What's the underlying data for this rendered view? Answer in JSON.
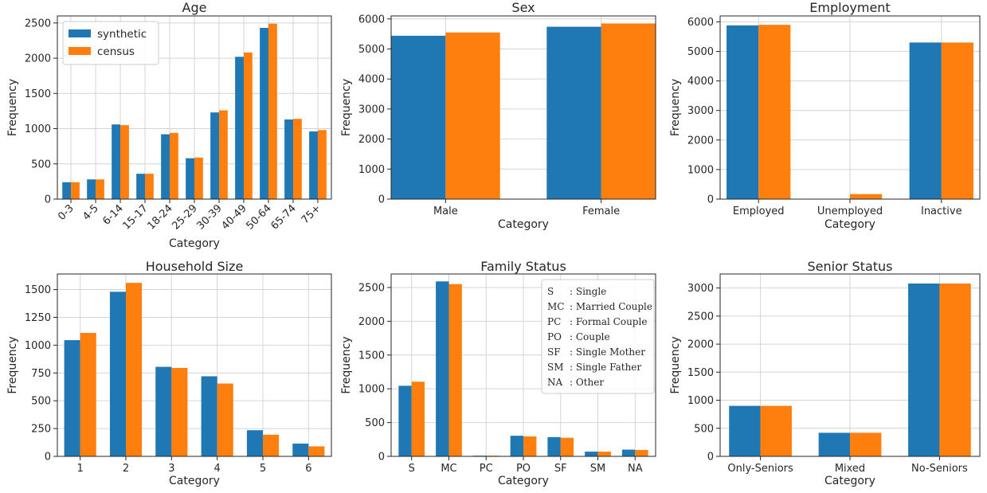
{
  "legend": {
    "synthetic": "synthetic",
    "census": "census"
  },
  "colors": {
    "synthetic": "#1f77b4",
    "census": "#ff7f0e"
  },
  "chart_data": [
    {
      "id": "age",
      "type": "bar",
      "title": "Age",
      "xlabel": "Category",
      "ylabel": "Frequency",
      "ylim": [
        0,
        2600
      ],
      "yticks": [
        0,
        500,
        1000,
        1500,
        2000,
        2500
      ],
      "grid": true,
      "legend_position": "top-left",
      "categories": [
        "0-3",
        "4-5",
        "6-14",
        "15-17",
        "18-24",
        "25-29",
        "30-39",
        "40-49",
        "50-64",
        "65-74",
        "75+"
      ],
      "series": [
        {
          "name": "synthetic",
          "values": [
            240,
            280,
            1060,
            360,
            920,
            580,
            1230,
            2020,
            2430,
            1130,
            960
          ]
        },
        {
          "name": "census",
          "values": [
            240,
            280,
            1050,
            360,
            940,
            590,
            1260,
            2080,
            2490,
            1140,
            980
          ]
        }
      ]
    },
    {
      "id": "sex",
      "type": "bar",
      "title": "Sex",
      "xlabel": "Category",
      "ylabel": "Frequency",
      "ylim": [
        0,
        6100
      ],
      "yticks": [
        0,
        1000,
        2000,
        3000,
        4000,
        5000,
        6000
      ],
      "grid": true,
      "categories": [
        "Male",
        "Female"
      ],
      "series": [
        {
          "name": "synthetic",
          "values": [
            5440,
            5740
          ]
        },
        {
          "name": "census",
          "values": [
            5550,
            5850
          ]
        }
      ]
    },
    {
      "id": "employment",
      "type": "bar",
      "title": "Employment",
      "xlabel": "Category",
      "ylabel": "Frequency",
      "ylim": [
        0,
        6200
      ],
      "yticks": [
        0,
        1000,
        2000,
        3000,
        4000,
        5000,
        6000
      ],
      "grid": true,
      "categories": [
        "Employed",
        "Unemployed",
        "Inactive"
      ],
      "series": [
        {
          "name": "synthetic",
          "values": [
            5880,
            0,
            5300
          ]
        },
        {
          "name": "census",
          "values": [
            5900,
            170,
            5300
          ]
        }
      ]
    },
    {
      "id": "household-size",
      "type": "bar",
      "title": "Household Size",
      "xlabel": "Category",
      "ylabel": "Frequency",
      "ylim": [
        0,
        1640
      ],
      "yticks": [
        0,
        250,
        500,
        750,
        1000,
        1250,
        1500
      ],
      "yticklabels": [
        "0",
        "250",
        "500",
        "750",
        "1000",
        "1250",
        "1500"
      ],
      "grid": true,
      "categories": [
        "1",
        "2",
        "3",
        "4",
        "5",
        "6"
      ],
      "series": [
        {
          "name": "synthetic",
          "values": [
            1045,
            1480,
            805,
            720,
            235,
            115
          ]
        },
        {
          "name": "census",
          "values": [
            1110,
            1560,
            795,
            655,
            195,
            90
          ]
        }
      ]
    },
    {
      "id": "family-status",
      "type": "bar",
      "title": "Family Status",
      "xlabel": "Category",
      "ylabel": "Frequency",
      "ylim": [
        0,
        2700
      ],
      "yticks": [
        0,
        500,
        1000,
        1500,
        2000,
        2500
      ],
      "grid": true,
      "legend_position": "top-right",
      "categories": [
        "S",
        "MC",
        "PC",
        "PO",
        "SF",
        "SM",
        "NA"
      ],
      "series": [
        {
          "name": "synthetic",
          "values": [
            1045,
            2590,
            10,
            305,
            285,
            70,
            100
          ]
        },
        {
          "name": "census",
          "values": [
            1105,
            2550,
            10,
            295,
            275,
            70,
            95
          ]
        }
      ],
      "abbreviations": [
        {
          "code": "S",
          "meaning": ": Single"
        },
        {
          "code": "MC",
          "meaning": ": Married Couple"
        },
        {
          "code": "PC",
          "meaning": ": Formal Couple"
        },
        {
          "code": "PO",
          "meaning": ": Couple"
        },
        {
          "code": "SF",
          "meaning": ": Single Mother"
        },
        {
          "code": "SM",
          "meaning": ": Single Father"
        },
        {
          "code": "NA",
          "meaning": ": Other"
        }
      ]
    },
    {
      "id": "senior-status",
      "type": "bar",
      "title": "Senior Status",
      "xlabel": "Category",
      "ylabel": "Frequency",
      "ylim": [
        0,
        3250
      ],
      "yticks": [
        0,
        500,
        1000,
        1500,
        2000,
        2500,
        3000
      ],
      "grid": true,
      "categories": [
        "Only-Seniors",
        "Mixed",
        "No-Seniors"
      ],
      "series": [
        {
          "name": "synthetic",
          "values": [
            900,
            420,
            3080
          ]
        },
        {
          "name": "census",
          "values": [
            900,
            420,
            3080
          ]
        }
      ]
    }
  ]
}
